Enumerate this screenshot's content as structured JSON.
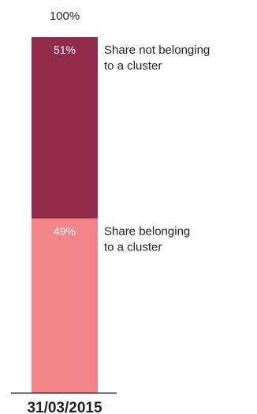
{
  "chart_data": {
    "type": "bar",
    "stacked": true,
    "categories": [
      "31/03/2015"
    ],
    "series": [
      {
        "name": "Share belonging to a cluster",
        "values": [
          49
        ],
        "color": "#f28389"
      },
      {
        "name": "Share not belonging to a cluster",
        "values": [
          51
        ],
        "color": "#922c4c"
      }
    ],
    "ylim": [
      0,
      100
    ],
    "total_label": "100%",
    "value_labels": [
      "49%",
      "51%"
    ],
    "series_label_lines": [
      [
        "Share belonging",
        "to a cluster"
      ],
      [
        "Share not belonging",
        "to a cluster"
      ]
    ],
    "legend_placement": "right of bar segments",
    "grid": false,
    "axis_color": "#231f20"
  }
}
